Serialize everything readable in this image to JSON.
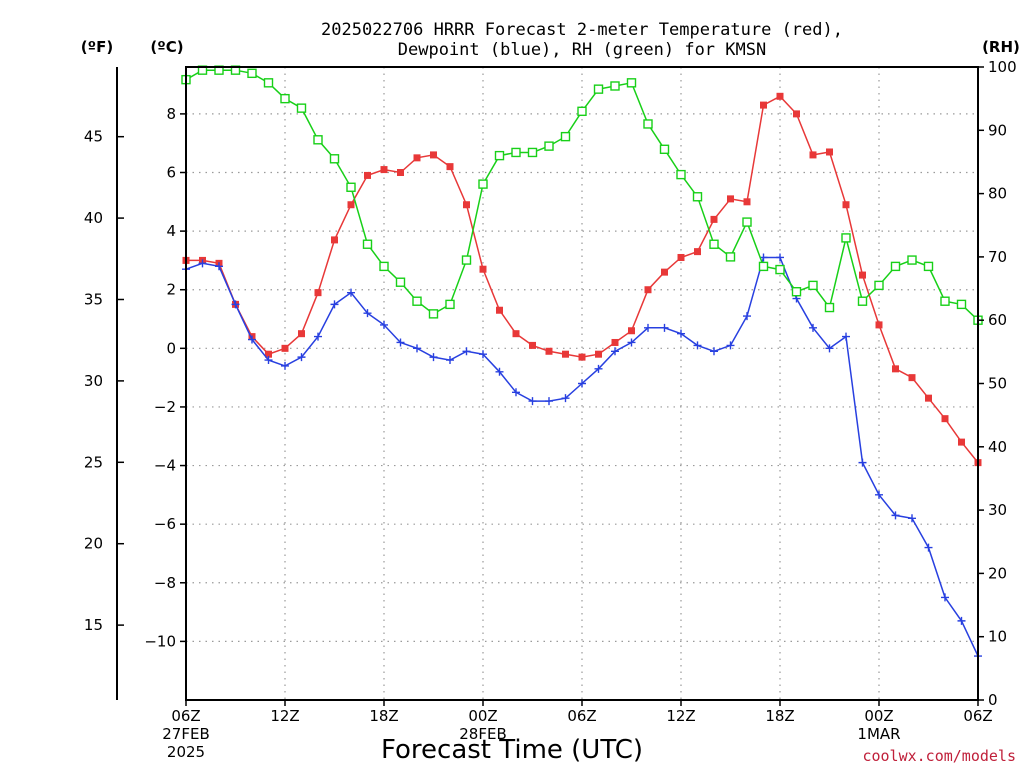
{
  "chart_data": {
    "type": "line",
    "title": "2025022706 HRRR Forecast 2-meter Temperature (red),\nDewpoint (blue), RH (green) for KMSN",
    "units": {
      "left_outer": "(ºF)",
      "left_inner": "(ºC)",
      "right": "(RH)"
    },
    "xlabel": "Forecast Time (UTC)",
    "credit": "coolwx.com/models",
    "x_hours": [
      0,
      1,
      2,
      3,
      4,
      5,
      6,
      7,
      8,
      9,
      10,
      11,
      12,
      13,
      14,
      15,
      16,
      17,
      18,
      19,
      20,
      21,
      22,
      23,
      24,
      25,
      26,
      27,
      28,
      29,
      30,
      31,
      32,
      33,
      34,
      35,
      36,
      37,
      38,
      39,
      40,
      41,
      42,
      43,
      44,
      45,
      46,
      47,
      48
    ],
    "xlim": [
      0,
      48
    ],
    "x_ticks": [
      {
        "h": 0,
        "lines": [
          "06Z",
          "27FEB",
          "2025"
        ]
      },
      {
        "h": 6,
        "lines": [
          "12Z"
        ]
      },
      {
        "h": 12,
        "lines": [
          "18Z"
        ]
      },
      {
        "h": 18,
        "lines": [
          "00Z",
          "28FEB"
        ]
      },
      {
        "h": 24,
        "lines": [
          "06Z"
        ]
      },
      {
        "h": 30,
        "lines": [
          "12Z"
        ]
      },
      {
        "h": 36,
        "lines": [
          "18Z"
        ]
      },
      {
        "h": 42,
        "lines": [
          "00Z",
          "1MAR"
        ]
      },
      {
        "h": 48,
        "lines": [
          "06Z"
        ]
      }
    ],
    "ylim_c": [
      -12,
      9.6
    ],
    "y_ticks_c": [
      "8",
      "6",
      "4",
      "2",
      "0",
      "−2",
      "−4",
      "−6",
      "−8",
      "−10"
    ],
    "y_ticks_c_values": [
      8,
      6,
      4,
      2,
      0,
      -2,
      -4,
      -6,
      -8,
      -10
    ],
    "y_ticks_f": [
      "45",
      "40",
      "35",
      "30",
      "25",
      "20",
      "15"
    ],
    "y_ticks_f_values": [
      45,
      40,
      35,
      30,
      25,
      20,
      15
    ],
    "ylim_rh": [
      0,
      100
    ],
    "y_ticks_rh": [
      "100",
      "90",
      "80",
      "70",
      "60",
      "50",
      "40",
      "30",
      "20",
      "10",
      "0"
    ],
    "y_ticks_rh_values": [
      100,
      90,
      80,
      70,
      60,
      50,
      40,
      30,
      20,
      10,
      0
    ],
    "grid": true,
    "series": [
      {
        "name": "Temperature",
        "unit": "C",
        "color": "#e83838",
        "marker": "filled-square",
        "values": [
          3.0,
          3.0,
          2.9,
          1.5,
          0.4,
          -0.2,
          0.0,
          0.5,
          1.9,
          3.7,
          4.9,
          5.9,
          6.1,
          6.0,
          6.5,
          6.6,
          6.2,
          4.9,
          2.7,
          1.3,
          0.5,
          0.1,
          -0.1,
          -0.2,
          -0.3,
          -0.2,
          0.2,
          0.6,
          2.0,
          2.6,
          3.1,
          3.3,
          4.4,
          5.1,
          5.0,
          8.3,
          8.6,
          8.0,
          6.6,
          6.7,
          4.9,
          2.5,
          0.8,
          -0.7,
          -1.0,
          -1.7,
          -2.4,
          -3.2,
          -3.9
        ]
      },
      {
        "name": "Dewpoint",
        "unit": "C",
        "color": "#2840e0",
        "marker": "plus",
        "values": [
          2.7,
          2.9,
          2.8,
          1.5,
          0.3,
          -0.4,
          -0.6,
          -0.3,
          0.4,
          1.5,
          1.9,
          1.2,
          0.8,
          0.2,
          0.0,
          -0.3,
          -0.4,
          -0.1,
          -0.2,
          -0.8,
          -1.5,
          -1.8,
          -1.8,
          -1.7,
          -1.2,
          -0.7,
          -0.1,
          0.2,
          0.7,
          0.7,
          0.5,
          0.1,
          -0.1,
          0.1,
          1.1,
          3.1,
          3.1,
          1.7,
          0.7,
          0.0,
          0.4,
          -3.9,
          -5.0,
          -5.7,
          -5.8,
          -6.8,
          -8.5,
          -9.3,
          -10.5
        ]
      },
      {
        "name": "RH",
        "unit": "%",
        "color": "#18d018",
        "marker": "open-square",
        "values": [
          98,
          99.5,
          99.5,
          99.5,
          99,
          97.5,
          95,
          93.5,
          88.5,
          85.5,
          81,
          72,
          68.5,
          66,
          63,
          61,
          62.5,
          69.5,
          81.5,
          86,
          86.5,
          86.5,
          87.5,
          89,
          93,
          96.5,
          97,
          97.5,
          91,
          87,
          83,
          79.5,
          72,
          70,
          75.5,
          68.5,
          68,
          64.5,
          65.5,
          62,
          73,
          63,
          65.5,
          68.5,
          69.5,
          68.5,
          63,
          62.5,
          60
        ]
      }
    ]
  }
}
